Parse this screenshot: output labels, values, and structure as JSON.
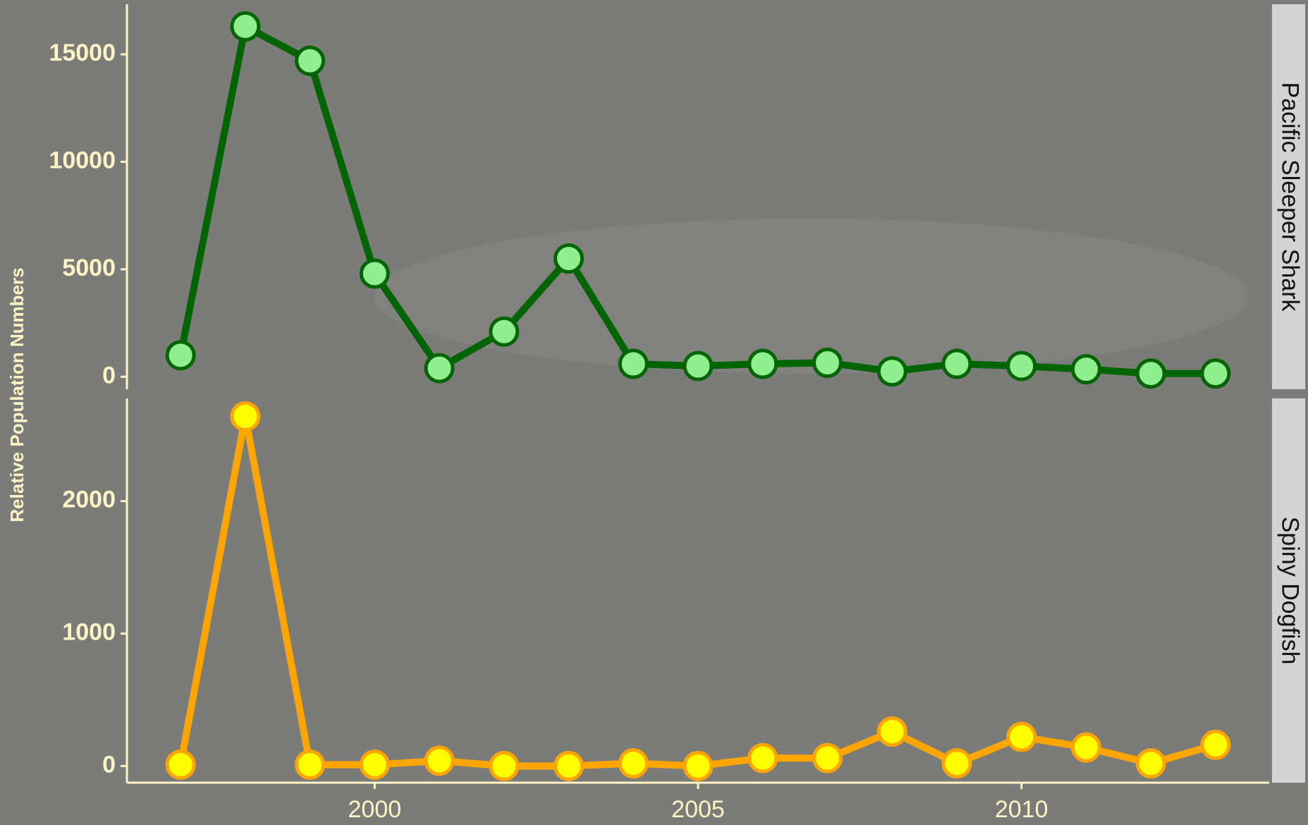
{
  "chart_data": {
    "type": "line",
    "y_label": "Relative Population Numbers",
    "x": [
      1997,
      1998,
      1999,
      2000,
      2001,
      2002,
      2003,
      2004,
      2005,
      2006,
      2007,
      2008,
      2009,
      2010,
      2011,
      2012,
      2013
    ],
    "xlim": [
      1996.17,
      2013.83
    ],
    "xticks": [
      2000,
      2005,
      2010
    ],
    "panels": [
      {
        "strip": "Pacific Sleeper Shark",
        "ylim": [
          -580,
          17330
        ],
        "yticks": [
          0,
          5000,
          10000,
          15000
        ],
        "series": [
          {
            "color": "#006400",
            "point_fill": "#90ee90",
            "values": [
              1000,
              16300,
              14700,
              4800,
              400,
              2100,
              5500,
              600,
              500,
              600,
              650,
              250,
              600,
              500,
              350,
              150,
              150
            ]
          }
        ]
      },
      {
        "strip": "Spiny Dogfish",
        "ylim": [
          -126,
          2776
        ],
        "yticks": [
          0,
          1000,
          2000
        ],
        "series": [
          {
            "color": "#ffa500",
            "point_fill": "#ffff00",
            "values": [
              10,
              2640,
              10,
              10,
              40,
              0,
              0,
              20,
              0,
              60,
              60,
              260,
              20,
              220,
              140,
              20,
              160
            ]
          }
        ]
      }
    ]
  }
}
